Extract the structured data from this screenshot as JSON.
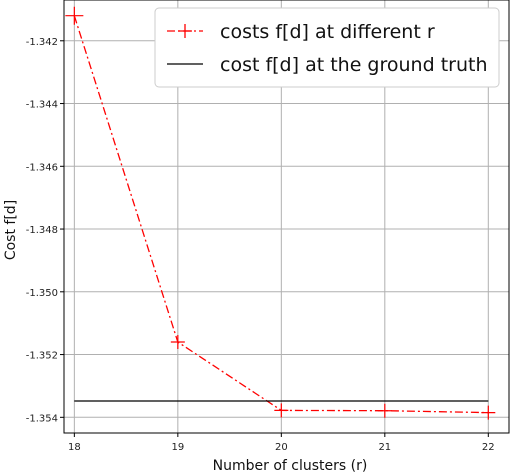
{
  "chart_data": {
    "type": "line",
    "xlabel": "Number of clusters (r)",
    "ylabel": "Cost f[d]",
    "xlim": [
      17.9,
      22.2
    ],
    "ylim": [
      -1.3545,
      -1.3407
    ],
    "grid": true,
    "legend_position": "top-right",
    "x_ticks": [
      18,
      19,
      20,
      21,
      22
    ],
    "y_ticks": [
      -1.342,
      -1.344,
      -1.346,
      -1.348,
      -1.35,
      -1.352,
      -1.354
    ],
    "x_tick_labels": [
      "18",
      "19",
      "20",
      "21",
      "22"
    ],
    "y_tick_labels": [
      "-1.342",
      "-1.344",
      "-1.346",
      "-1.348",
      "-1.350",
      "-1.352",
      "-1.354"
    ],
    "series": [
      {
        "name": "costs f[d] at different r",
        "x": [
          18,
          19,
          20,
          21,
          22
        ],
        "y": [
          -1.3412,
          -1.3516,
          -1.35378,
          -1.35379,
          -1.35385
        ],
        "color": "#ff0000",
        "style": "dash-dot",
        "marker": "plus"
      },
      {
        "name": "cost f[d] at the ground truth",
        "x": [
          18,
          22
        ],
        "y": [
          -1.35348,
          -1.35348
        ],
        "color": "#000000",
        "style": "solid"
      }
    ]
  }
}
